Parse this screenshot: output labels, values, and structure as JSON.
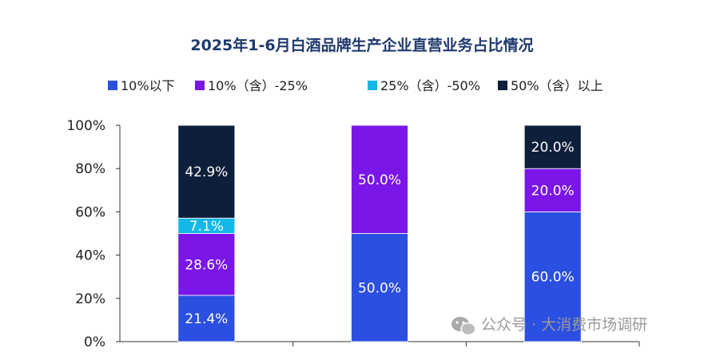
{
  "chart_data": {
    "type": "bar",
    "stacked": true,
    "title": "2025年1-6月白酒品牌生产企业直营业务占比情况",
    "categories": [
      "",
      "",
      ""
    ],
    "series": [
      {
        "name": "10%以下",
        "color": "#2b4fe0",
        "values": [
          21.4,
          50.0,
          60.0
        ],
        "labels": [
          "21.4%",
          "50.0%",
          "60.0%"
        ]
      },
      {
        "name": "10%（含）-25%",
        "color": "#7a16e8",
        "values": [
          28.6,
          50.0,
          20.0
        ],
        "labels": [
          "28.6%",
          "50.0%",
          "20.0%"
        ]
      },
      {
        "name": "25%（含）-50%",
        "color": "#12b8e8",
        "values": [
          7.1,
          0,
          0
        ],
        "labels": [
          "7.1%",
          "",
          ""
        ]
      },
      {
        "name": "50%（含）以上",
        "color": "#0e1f3c",
        "values": [
          42.9,
          0,
          20.0
        ],
        "labels": [
          "42.9%",
          "",
          "20.0%"
        ]
      }
    ],
    "ylim": [
      0,
      100
    ],
    "yticks": [
      "0%",
      "20%",
      "40%",
      "60%",
      "80%",
      "100%"
    ],
    "grid": false,
    "legend_position": "top"
  },
  "watermark": {
    "text": "公众号 · 大消费市场调研",
    "icon": "wechat-icon"
  }
}
